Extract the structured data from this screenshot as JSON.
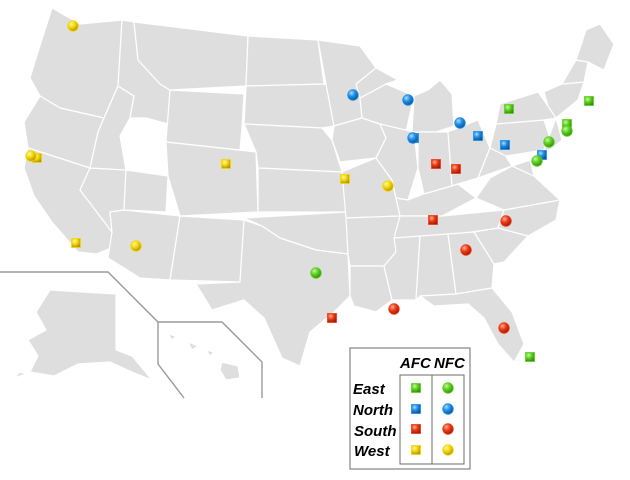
{
  "colors": {
    "East": "#5fd022",
    "North": "#1f8fe6",
    "South": "#ee3b16",
    "West": "#f3d70c"
  },
  "legend": {
    "conference_afc": "AFC",
    "conference_nfc": "NFC",
    "divisions": [
      "East",
      "North",
      "South",
      "West"
    ],
    "afc_symbol": "square",
    "nfc_symbol": "circle"
  },
  "teams": [
    {
      "conference": "AFC",
      "division": "East"
    },
    {
      "conference": "AFC",
      "division": "East"
    },
    {
      "conference": "AFC",
      "division": "East"
    },
    {
      "conference": "AFC",
      "division": "East"
    },
    {
      "conference": "AFC",
      "division": "North"
    },
    {
      "conference": "AFC",
      "division": "North"
    },
    {
      "conference": "AFC",
      "division": "North"
    },
    {
      "conference": "AFC",
      "division": "North"
    },
    {
      "conference": "AFC",
      "division": "South"
    },
    {
      "conference": "AFC",
      "division": "South"
    },
    {
      "conference": "AFC",
      "division": "South"
    },
    {
      "conference": "AFC",
      "division": "South"
    },
    {
      "conference": "AFC",
      "division": "West"
    },
    {
      "conference": "AFC",
      "division": "West"
    },
    {
      "conference": "AFC",
      "division": "West"
    },
    {
      "conference": "AFC",
      "division": "West"
    },
    {
      "conference": "NFC",
      "division": "East"
    },
    {
      "conference": "NFC",
      "division": "East"
    },
    {
      "conference": "NFC",
      "division": "East"
    },
    {
      "conference": "NFC",
      "division": "East"
    },
    {
      "conference": "NFC",
      "division": "North"
    },
    {
      "conference": "NFC",
      "division": "North"
    },
    {
      "conference": "NFC",
      "division": "North"
    },
    {
      "conference": "NFC",
      "division": "North"
    },
    {
      "conference": "NFC",
      "division": "South"
    },
    {
      "conference": "NFC",
      "division": "South"
    },
    {
      "conference": "NFC",
      "division": "South"
    },
    {
      "conference": "NFC",
      "division": "South"
    },
    {
      "conference": "NFC",
      "division": "West"
    },
    {
      "conference": "NFC",
      "division": "West"
    },
    {
      "conference": "NFC",
      "division": "West"
    },
    {
      "conference": "NFC",
      "division": "West"
    }
  ]
}
